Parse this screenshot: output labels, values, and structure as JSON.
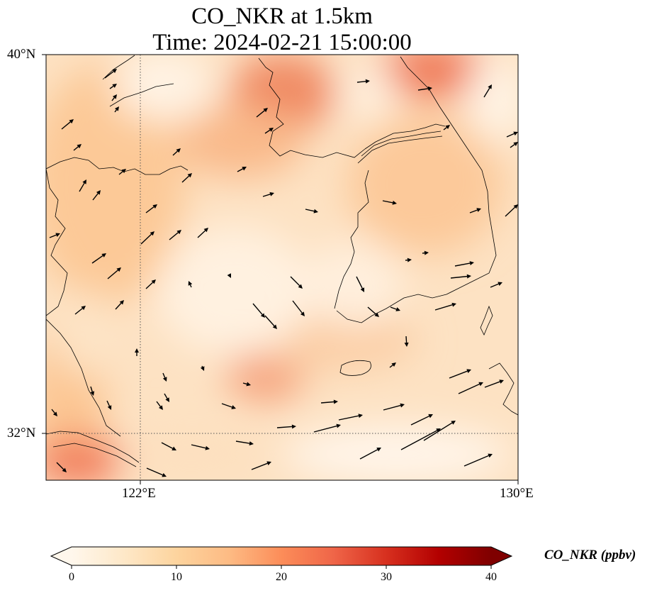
{
  "title": {
    "line1": "CO_NKR at 1.5km",
    "line2": "Time: 2024-02-21 15:00:00"
  },
  "map": {
    "lat_labels": [
      "40°N",
      "32°N"
    ],
    "lon_labels": [
      "122°E",
      "130°E"
    ],
    "extent": {
      "lon_min": 120,
      "lon_max": 130,
      "lat_min": 31,
      "lat_max": 40
    },
    "field_variable": "CO_NKR",
    "field_unit": "ppbv",
    "vectors": "wind"
  },
  "colorbar": {
    "label": "CO_NKR (ppbv)",
    "ticks": [
      "0",
      "10",
      "20",
      "30",
      "40"
    ],
    "range": [
      0,
      40
    ],
    "colormap": "OrRd",
    "extend": "both",
    "colors": [
      "#fff7ec",
      "#fee8c8",
      "#fdd49e",
      "#fdbb84",
      "#fc8d59",
      "#ef6548",
      "#d7301f",
      "#b30000",
      "#7f0000"
    ]
  }
}
